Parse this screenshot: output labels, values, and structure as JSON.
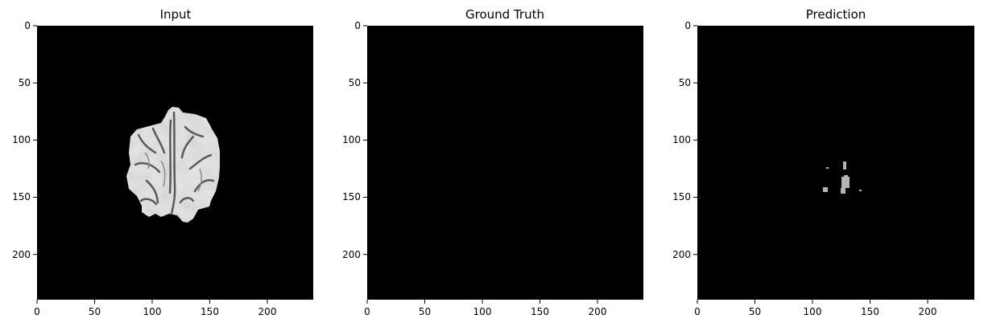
{
  "figure": {
    "panels": [
      {
        "title": "Input"
      },
      {
        "title": "Ground Truth"
      },
      {
        "title": "Prediction"
      }
    ],
    "x_ticks": [
      "0",
      "50",
      "100",
      "150",
      "200"
    ],
    "y_ticks": [
      "0",
      "50",
      "100",
      "150",
      "200"
    ],
    "image_size": [
      240,
      240
    ],
    "colors": {
      "background": "#000000",
      "brain_tissue": "#e6e6e6",
      "prediction_mask": "#b4b4b4"
    }
  }
}
